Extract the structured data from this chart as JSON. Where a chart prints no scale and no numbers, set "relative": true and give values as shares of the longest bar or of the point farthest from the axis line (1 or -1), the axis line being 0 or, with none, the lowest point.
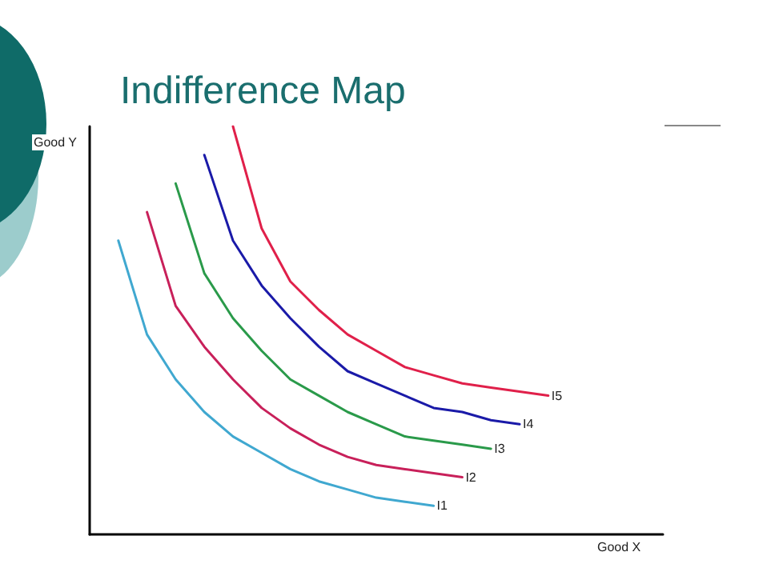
{
  "chart_data": {
    "type": "line",
    "title": "Indifference Map",
    "xlabel": "Good X",
    "ylabel": "Good Y",
    "relative": true,
    "marker": "none",
    "categories": [
      null,
      null,
      null,
      null,
      null,
      null,
      null,
      null,
      null,
      null,
      null,
      null,
      null,
      null,
      null,
      null,
      null,
      null,
      null,
      null,
      null
    ],
    "series": [
      {
        "name": "I1",
        "color": "#40a8d0",
        "values": [
          null,
          0.72,
          0.49,
          0.38,
          0.3,
          0.24,
          0.2,
          0.16,
          0.13,
          0.11,
          0.09,
          0.08,
          0.07,
          null,
          null,
          null,
          null,
          null,
          null,
          null,
          null
        ]
      },
      {
        "name": "I2",
        "color": "#c8205a",
        "values": [
          null,
          null,
          0.79,
          0.56,
          0.46,
          0.38,
          0.31,
          0.26,
          0.22,
          0.19,
          0.17,
          0.16,
          0.15,
          0.14,
          null,
          null,
          null,
          null,
          null,
          null,
          null
        ]
      },
      {
        "name": "I3",
        "color": "#2a9a4a",
        "values": [
          null,
          null,
          null,
          0.86,
          0.64,
          0.53,
          0.45,
          0.38,
          0.34,
          0.3,
          0.27,
          0.24,
          0.23,
          0.22,
          0.21,
          null,
          null,
          null,
          null,
          null,
          null
        ]
      },
      {
        "name": "I4",
        "color": "#1a1aa8",
        "values": [
          null,
          null,
          null,
          null,
          0.93,
          0.72,
          0.61,
          0.53,
          0.46,
          0.4,
          0.37,
          0.34,
          0.31,
          0.3,
          0.28,
          0.27,
          null,
          null,
          null,
          null,
          null
        ]
      },
      {
        "name": "I5",
        "color": "#e0204a",
        "values": [
          null,
          null,
          null,
          null,
          null,
          1.0,
          0.75,
          0.62,
          0.55,
          0.49,
          0.45,
          0.41,
          0.39,
          0.37,
          0.36,
          0.35,
          0.34,
          null,
          null,
          null,
          null
        ]
      }
    ]
  }
}
